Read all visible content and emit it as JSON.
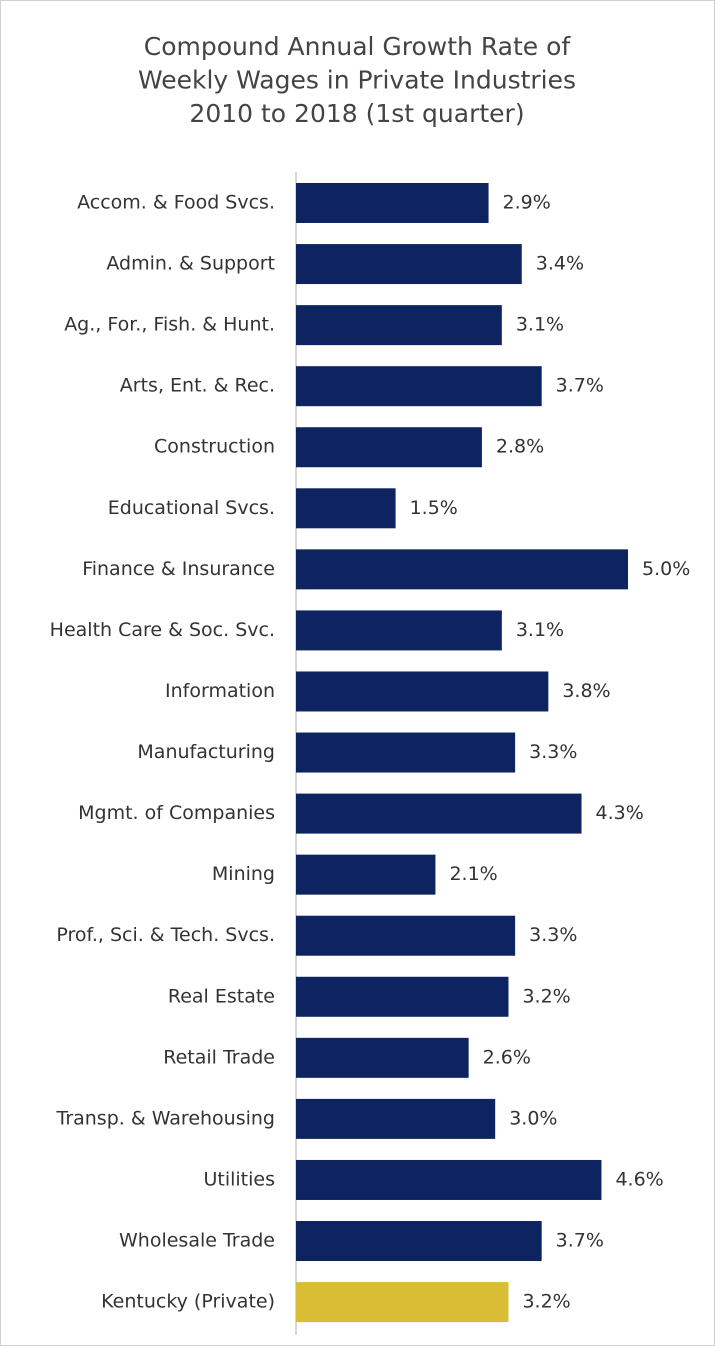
{
  "chart_data": {
    "type": "barh",
    "title": [
      "Compound Annual Growth Rate of",
      "Weekly Wages in Private Industries",
      "2010 to 2018 (1st quarter)"
    ],
    "categories": [
      "Accom. & Food Svcs.",
      "Admin. & Support",
      "Ag., For., Fish. & Hunt.",
      "Arts, Ent. & Rec.",
      "Construction",
      "Educational Svcs.",
      "Finance & Insurance",
      "Health Care & Soc. Svc.",
      "Information",
      "Manufacturing",
      "Mgmt. of Companies",
      "Mining",
      "Prof., Sci. & Tech. Svcs.",
      "Real Estate",
      "Retail Trade",
      "Transp. & Warehousing",
      "Utilities",
      "Wholesale Trade",
      "Kentucky (Private)"
    ],
    "values": [
      2.9,
      3.4,
      3.1,
      3.7,
      2.8,
      1.5,
      5.0,
      3.1,
      3.8,
      3.3,
      4.3,
      2.1,
      3.3,
      3.2,
      2.6,
      3.0,
      4.6,
      3.7,
      3.2
    ],
    "value_labels": [
      "2.9%",
      "3.4%",
      "3.1%",
      "3.7%",
      "2.8%",
      "1.5%",
      "5.0%",
      "3.1%",
      "3.8%",
      "3.3%",
      "4.3%",
      "2.1%",
      "3.3%",
      "3.2%",
      "2.6%",
      "3.0%",
      "4.6%",
      "3.7%",
      "3.2%"
    ],
    "colors": [
      "#0e2460",
      "#0e2460",
      "#0e2460",
      "#0e2460",
      "#0e2460",
      "#0e2460",
      "#0e2460",
      "#0e2460",
      "#0e2460",
      "#0e2460",
      "#0e2460",
      "#0e2460",
      "#0e2460",
      "#0e2460",
      "#0e2460",
      "#0e2460",
      "#0e2460",
      "#0e2460",
      "#d8bd35"
    ]
  }
}
